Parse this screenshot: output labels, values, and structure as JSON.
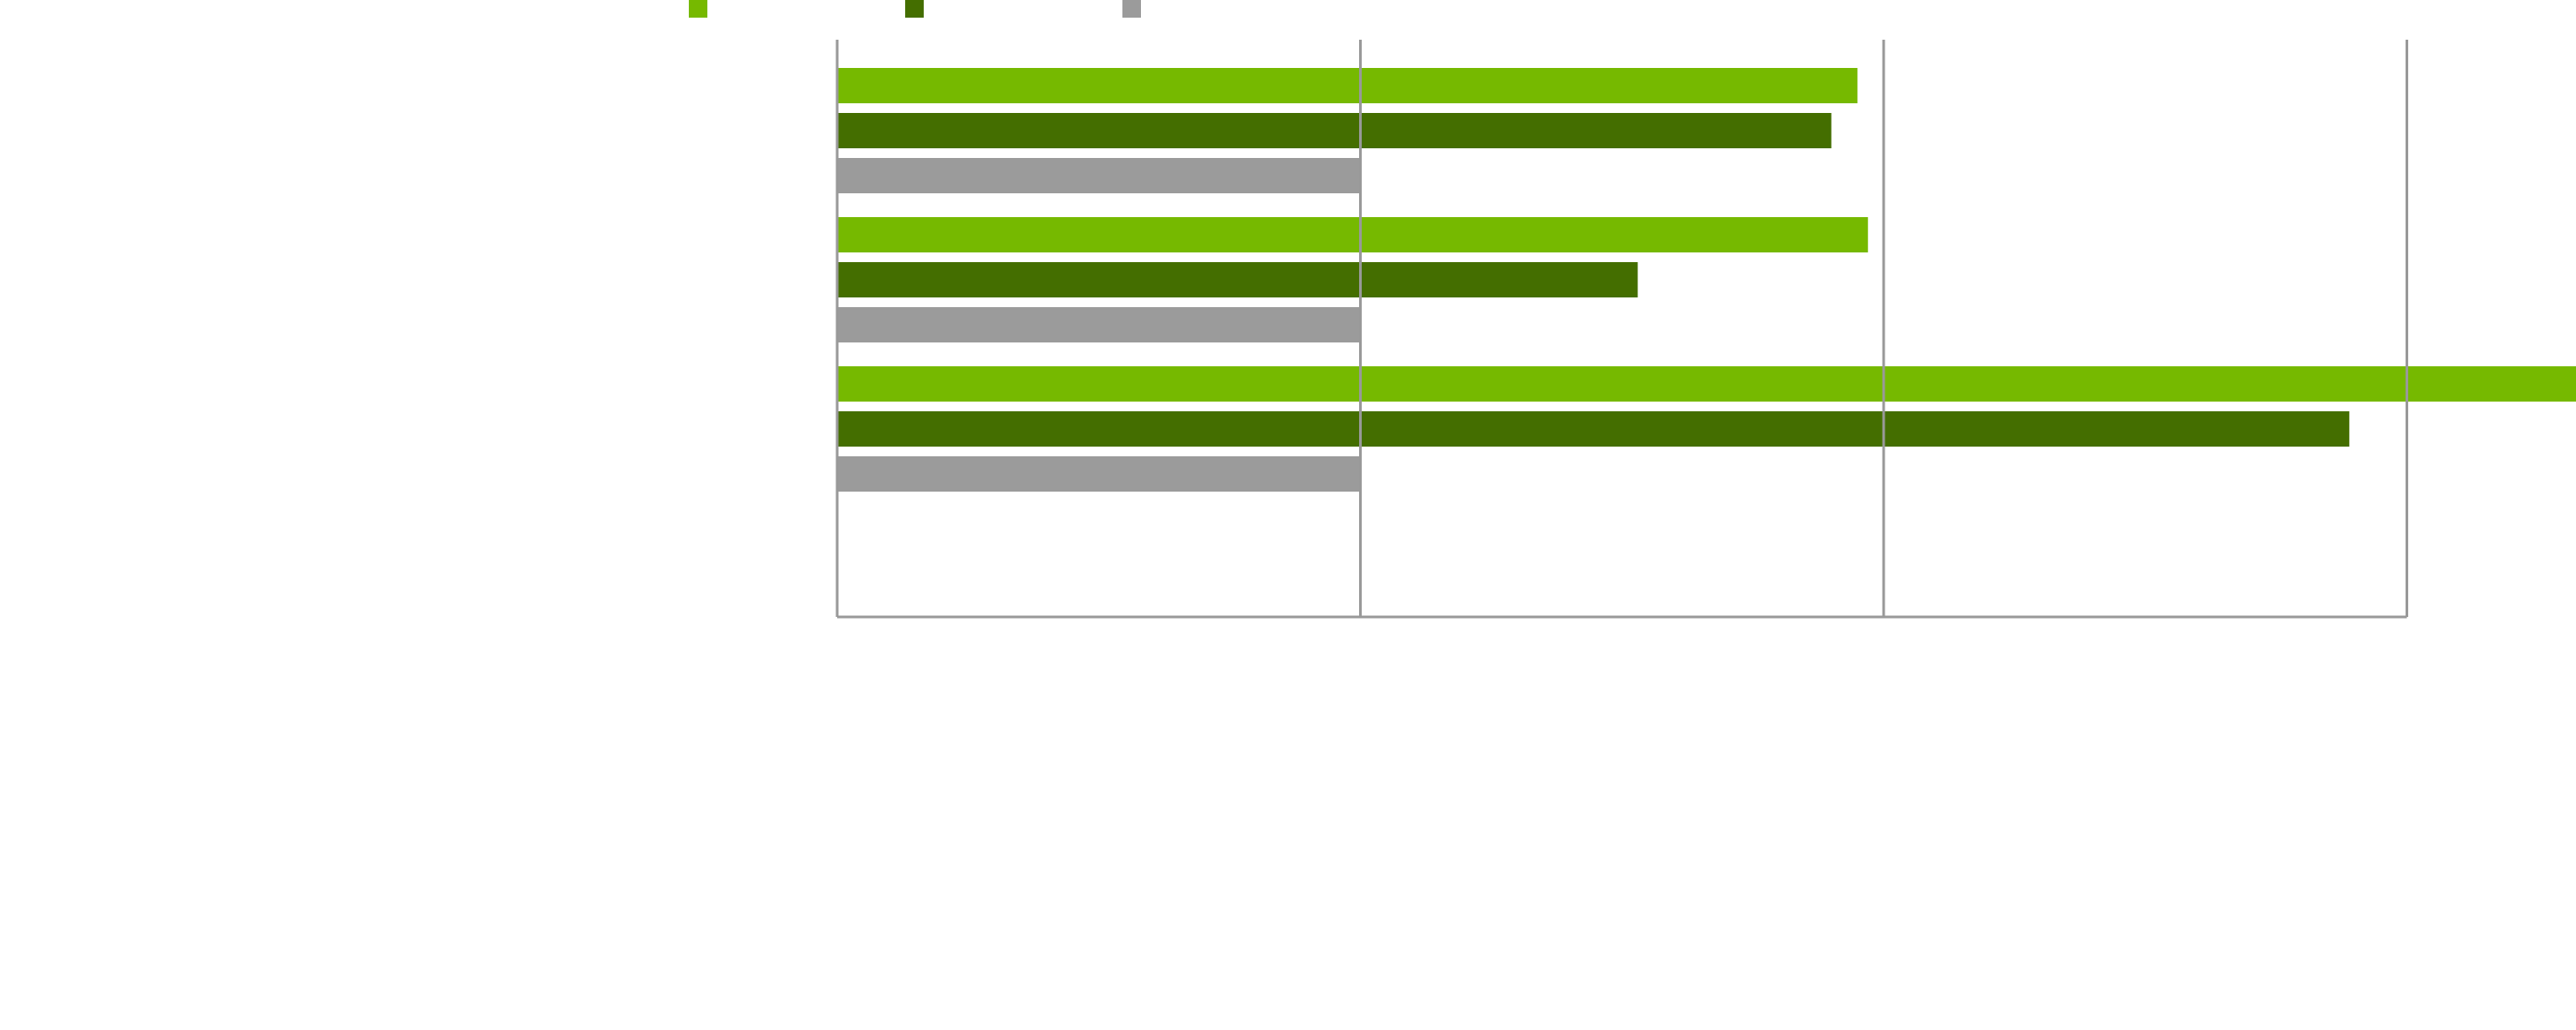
{
  "chart_data": {
    "type": "bar",
    "orientation": "horizontal",
    "categories": [
      null,
      null,
      null
    ],
    "series": [
      {
        "color": "#76b900",
        "values": [
          1.95,
          1.97,
          3.33
        ]
      },
      {
        "color": "#446e00",
        "values": [
          1.9,
          1.53,
          2.89
        ]
      },
      {
        "color": "#9b9b9b",
        "values": [
          1.0,
          1.0,
          1.0
        ]
      }
    ],
    "xlim": [
      0,
      3
    ],
    "xticks": [
      0,
      1,
      2,
      3
    ],
    "grid": true,
    "legend": "top"
  }
}
